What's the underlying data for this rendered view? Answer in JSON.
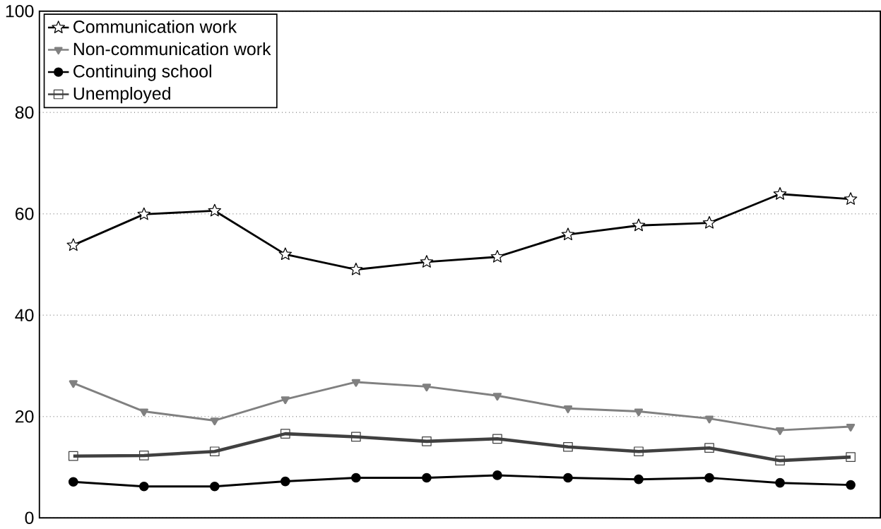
{
  "chart_data": {
    "type": "line",
    "categories": [
      null,
      null,
      null,
      null,
      null,
      null,
      null,
      null,
      null,
      null,
      null,
      null
    ],
    "ylim": [
      0,
      100
    ],
    "yticks": [
      0,
      20,
      40,
      60,
      80,
      100
    ],
    "grid": "y",
    "legend": "top left",
    "tick_labels": "y",
    "line_style": "solid",
    "series": [
      {
        "name": "Communication work",
        "color": "#000000",
        "marker": "star",
        "values": [
          53.8,
          59.9,
          60.6,
          52.0,
          49.0,
          50.5,
          51.5,
          55.9,
          57.7,
          58.2,
          63.9,
          62.9
        ]
      },
      {
        "name": "Non-communication work",
        "color": "#808080",
        "marker": "triangle",
        "values": [
          26.6,
          21.0,
          19.2,
          23.4,
          26.8,
          25.9,
          24.1,
          21.6,
          21.0,
          19.6,
          17.3,
          18.0
        ]
      },
      {
        "name": "Continuing school",
        "color": "#000000",
        "marker": "circle",
        "values": [
          7.1,
          6.2,
          6.2,
          7.2,
          7.9,
          7.9,
          8.4,
          7.9,
          7.6,
          7.9,
          6.9,
          6.5
        ]
      },
      {
        "name": "Unemployed",
        "color": "#404040",
        "marker": "square",
        "values": [
          12.2,
          12.3,
          13.1,
          16.6,
          16.0,
          15.1,
          15.6,
          14.0,
          13.1,
          13.8,
          11.3,
          12.0
        ]
      }
    ]
  }
}
